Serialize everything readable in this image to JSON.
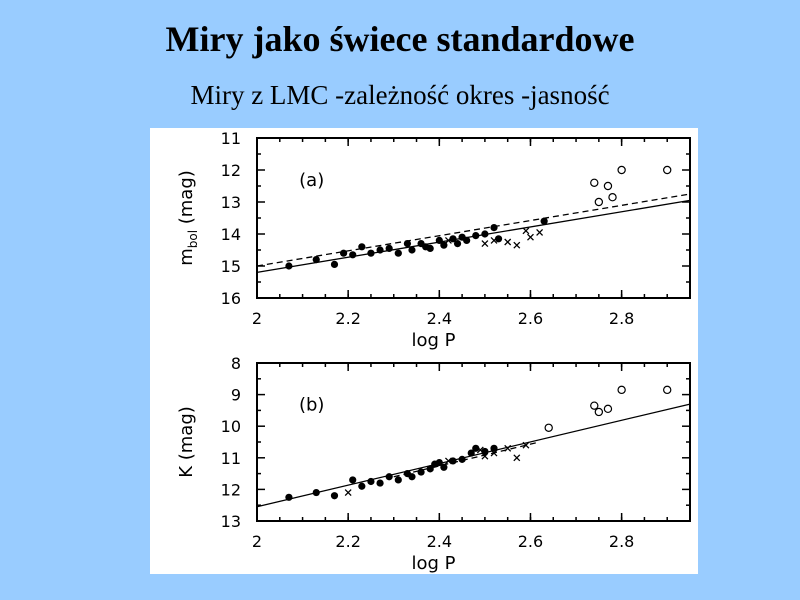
{
  "slide": {
    "title": "Miry jako świece standardowe",
    "subtitle": "Miry z LMC -zależność okres -jasność"
  },
  "chart_data": [
    {
      "type": "scatter",
      "panel_label": "(a)",
      "xlabel": "log P",
      "ylabel": "m_bol (mag)",
      "ylabel_main": "m",
      "ylabel_sub": "bol",
      "ylabel_unit": "(mag)",
      "xlim": [
        2.0,
        2.95
      ],
      "ylim": [
        16,
        11
      ],
      "y_inverted": true,
      "xticks": [
        "2",
        "2.2",
        "2.4",
        "2.6",
        "2.8"
      ],
      "yticks": [
        "11",
        "12",
        "13",
        "14",
        "15",
        "16"
      ],
      "series": [
        {
          "marker": "filled-circle",
          "points": [
            [
              2.07,
              15.0
            ],
            [
              2.13,
              14.8
            ],
            [
              2.17,
              14.95
            ],
            [
              2.19,
              14.6
            ],
            [
              2.21,
              14.65
            ],
            [
              2.23,
              14.4
            ],
            [
              2.25,
              14.6
            ],
            [
              2.27,
              14.5
            ],
            [
              2.29,
              14.45
            ],
            [
              2.31,
              14.6
            ],
            [
              2.33,
              14.3
            ],
            [
              2.34,
              14.5
            ],
            [
              2.36,
              14.3
            ],
            [
              2.37,
              14.4
            ],
            [
              2.38,
              14.45
            ],
            [
              2.4,
              14.2
            ],
            [
              2.41,
              14.35
            ],
            [
              2.43,
              14.15
            ],
            [
              2.44,
              14.3
            ],
            [
              2.45,
              14.1
            ],
            [
              2.46,
              14.2
            ],
            [
              2.48,
              14.05
            ],
            [
              2.5,
              14.0
            ],
            [
              2.52,
              13.8
            ],
            [
              2.53,
              14.15
            ],
            [
              2.63,
              13.6
            ]
          ]
        },
        {
          "marker": "cross",
          "points": [
            [
              2.42,
              14.2
            ],
            [
              2.5,
              14.3
            ],
            [
              2.52,
              14.2
            ],
            [
              2.55,
              14.25
            ],
            [
              2.57,
              14.35
            ],
            [
              2.59,
              13.9
            ],
            [
              2.6,
              14.1
            ],
            [
              2.62,
              13.95
            ]
          ]
        },
        {
          "marker": "open-circle",
          "points": [
            [
              2.74,
              12.4
            ],
            [
              2.75,
              13.0
            ],
            [
              2.77,
              12.5
            ],
            [
              2.78,
              12.85
            ],
            [
              2.8,
              12.0
            ],
            [
              2.9,
              12.0
            ]
          ]
        }
      ],
      "fit_lines": [
        {
          "style": "solid",
          "points": [
            [
              2.0,
              15.2
            ],
            [
              2.95,
              12.95
            ]
          ]
        },
        {
          "style": "dashed",
          "points": [
            [
              2.0,
              15.0
            ],
            [
              2.95,
              12.75
            ]
          ]
        }
      ]
    },
    {
      "type": "scatter",
      "panel_label": "(b)",
      "xlabel": "log P",
      "ylabel": "K (mag)",
      "xlim": [
        2.0,
        2.95
      ],
      "ylim": [
        13,
        8
      ],
      "y_inverted": true,
      "xticks": [
        "2",
        "2.2",
        "2.4",
        "2.6",
        "2.8"
      ],
      "yticks": [
        "8",
        "9",
        "10",
        "11",
        "12",
        "13"
      ],
      "series": [
        {
          "marker": "filled-circle",
          "points": [
            [
              2.07,
              12.25
            ],
            [
              2.13,
              12.1
            ],
            [
              2.17,
              12.2
            ],
            [
              2.21,
              11.7
            ],
            [
              2.23,
              11.9
            ],
            [
              2.25,
              11.75
            ],
            [
              2.27,
              11.8
            ],
            [
              2.29,
              11.6
            ],
            [
              2.31,
              11.7
            ],
            [
              2.33,
              11.5
            ],
            [
              2.34,
              11.6
            ],
            [
              2.36,
              11.45
            ],
            [
              2.38,
              11.35
            ],
            [
              2.39,
              11.2
            ],
            [
              2.4,
              11.15
            ],
            [
              2.41,
              11.3
            ],
            [
              2.43,
              11.1
            ],
            [
              2.45,
              11.05
            ],
            [
              2.47,
              10.85
            ],
            [
              2.48,
              10.7
            ],
            [
              2.5,
              10.8
            ],
            [
              2.52,
              10.7
            ]
          ]
        },
        {
          "marker": "cross",
          "points": [
            [
              2.2,
              12.1
            ],
            [
              2.42,
              11.1
            ],
            [
              2.49,
              10.75
            ],
            [
              2.5,
              10.95
            ],
            [
              2.52,
              10.85
            ],
            [
              2.55,
              10.7
            ],
            [
              2.57,
              11.0
            ],
            [
              2.59,
              10.6
            ]
          ]
        },
        {
          "marker": "open-circle",
          "points": [
            [
              2.64,
              10.05
            ],
            [
              2.74,
              9.35
            ],
            [
              2.75,
              9.55
            ],
            [
              2.77,
              9.45
            ],
            [
              2.8,
              8.85
            ],
            [
              2.9,
              8.85
            ]
          ]
        }
      ],
      "fit_lines": [
        {
          "style": "solid",
          "points": [
            [
              2.0,
              12.55
            ],
            [
              2.95,
              9.3
            ]
          ]
        },
        {
          "style": "dashed",
          "points": [
            [
              2.3,
              11.6
            ],
            [
              2.62,
              10.5
            ]
          ]
        }
      ]
    }
  ]
}
